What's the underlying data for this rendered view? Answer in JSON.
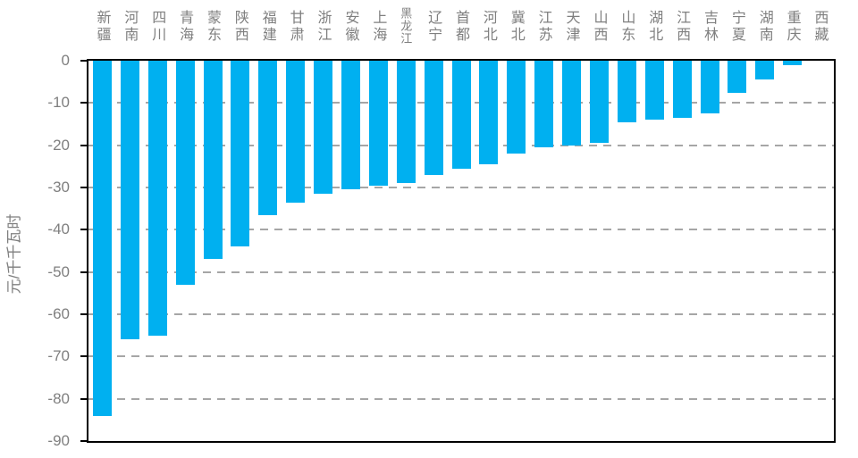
{
  "chart_data": {
    "type": "bar",
    "title": "",
    "xlabel": "",
    "ylabel": "元/千千瓦时",
    "ylim": [
      -90,
      0
    ],
    "yticks": [
      0,
      -10,
      -20,
      -30,
      -40,
      -50,
      -60,
      -70,
      -80,
      -90
    ],
    "grid": true,
    "grid_style": "dashed",
    "legend": "none",
    "categories": [
      "新疆",
      "河南",
      "四川",
      "青海",
      "蒙东",
      "陕西",
      "福建",
      "甘肃",
      "浙江",
      "安徽",
      "上海",
      "黑龙江",
      "辽宁",
      "首都",
      "河北",
      "冀北",
      "江苏",
      "天津",
      "山西",
      "山东",
      "湖北",
      "江西",
      "吉林",
      "宁夏",
      "湖南",
      "重庆",
      "西藏"
    ],
    "values": [
      -84,
      -66,
      -65,
      -53,
      -47,
      -44,
      -36.5,
      -33.5,
      -31.5,
      -30.5,
      -29.5,
      -29,
      -27,
      -25.5,
      -24.5,
      -22,
      -20.5,
      -20,
      -19.5,
      -14.5,
      -14,
      -13.5,
      -12.5,
      -7.5,
      -4.5,
      -1,
      0
    ]
  },
  "colors": {
    "bar": "#00b0f0",
    "axis_frame": "#000000",
    "gridline": "#a6a6a6",
    "label_gray": "#7f7f7f",
    "background": "#ffffff"
  }
}
